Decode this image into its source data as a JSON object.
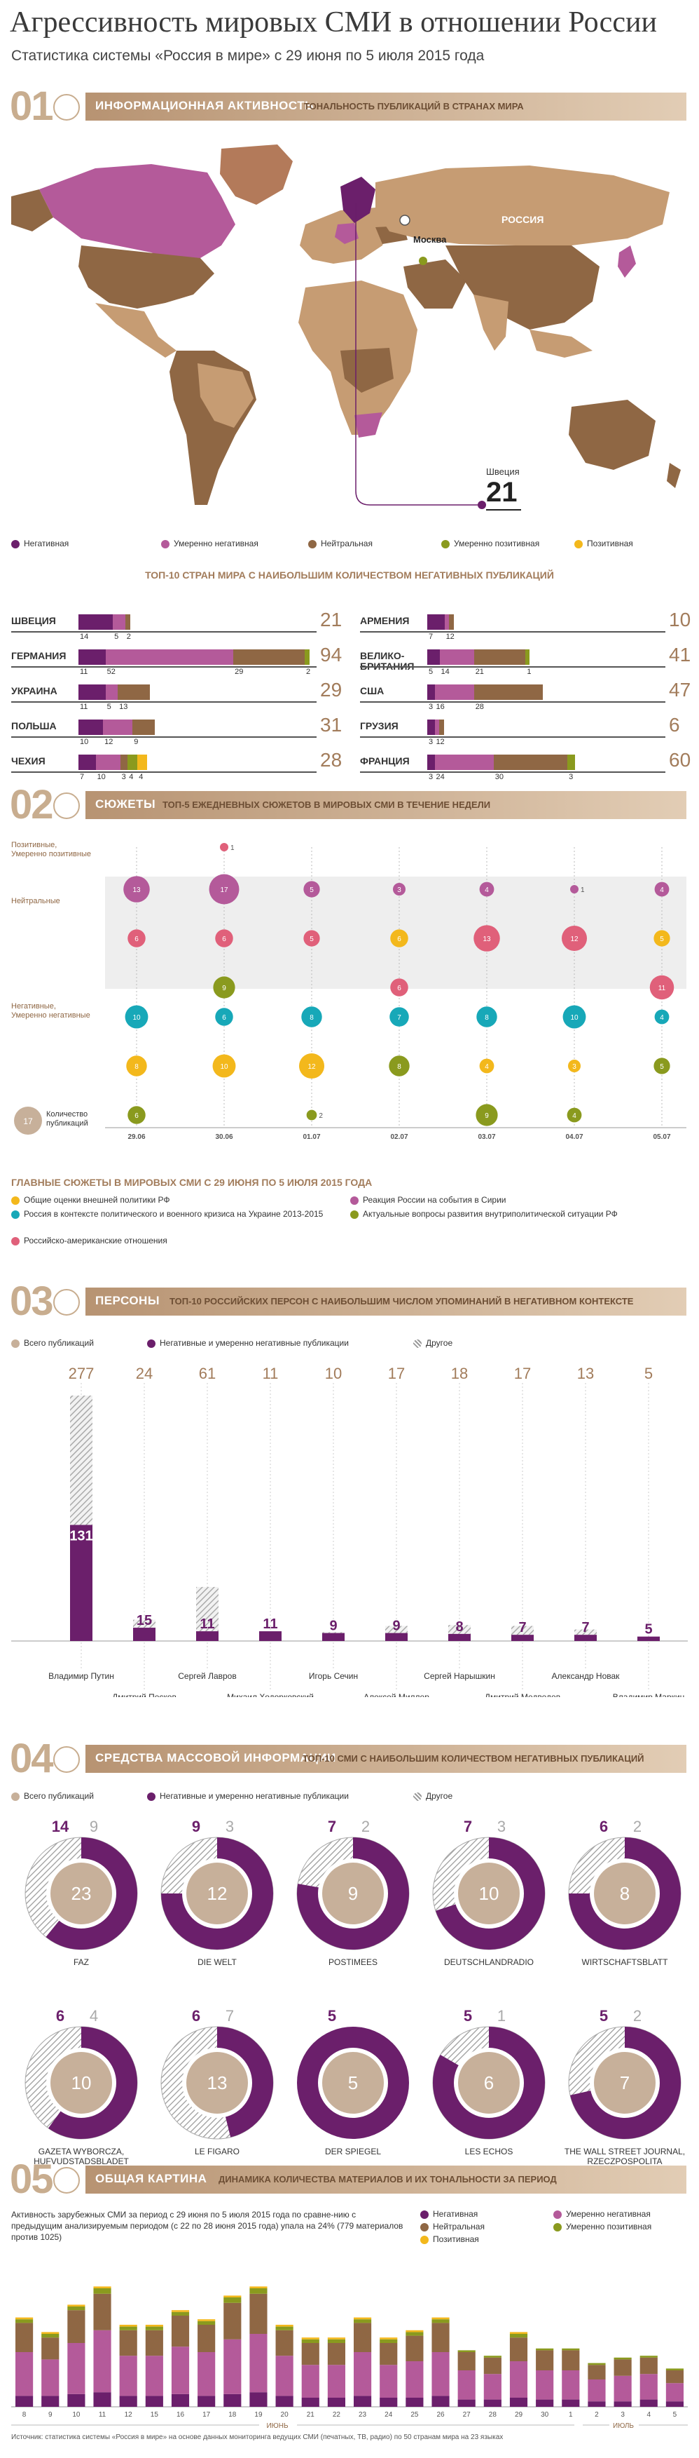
{
  "header": {
    "title": "Агрессивность мировых СМИ в отношении России",
    "subtitle": "Статистика системы «Россия в мире» с 29 июня по 5 июля 2015 года"
  },
  "colors": {
    "negative": "#6b1f6b",
    "moderate_negative": "#b45a9a",
    "neutral": "#8f6744",
    "moderate_positive": "#8a9a1e",
    "positive": "#f3b81c",
    "other": "#bdbdbd",
    "total": "#c7b09a"
  },
  "section1": {
    "number": "01",
    "label": "ИНФОРМАЦИОННАЯ АКТИВНОСТЬ",
    "sublabel": "ТОНАЛЬНОСТЬ ПУБЛИКАЦИЙ В СТРАНАХ МИРА",
    "map_labels": {
      "russia": "РОССИЯ",
      "moscow": "Москва",
      "callout_country": "Швеция",
      "callout_value": "21"
    },
    "legend": [
      "Негативная",
      "Умеренно негативная",
      "Нейтральная",
      "Умеренно позитивная",
      "Позитивная"
    ],
    "top10_title": "ТОП-10 СТРАН МИРА С НАИБОЛЬШИМ КОЛИЧЕСТВОМ НЕГАТИВНЫХ ПУБЛИКАЦИЙ"
  },
  "chart_data": [
    {
      "type": "bar",
      "title": "ТОП-10 СТРАН МИРА С НАИБОЛЬШИМ КОЛИЧЕСТВОМ НЕГАТИВНЫХ ПУБЛИКАЦИЙ",
      "series_names": [
        "Негативная",
        "Умеренно негативная",
        "Нейтральная",
        "Умеренно позитивная",
        "Позитивная"
      ],
      "countries": [
        {
          "name": "ШВЕЦИЯ",
          "total": 21,
          "values": [
            14,
            5,
            2,
            0,
            0
          ]
        },
        {
          "name": "ГЕРМАНИЯ",
          "total": 94,
          "values": [
            11,
            52,
            29,
            2,
            0
          ]
        },
        {
          "name": "УКРАИНА",
          "total": 29,
          "values": [
            11,
            5,
            13,
            0,
            0
          ]
        },
        {
          "name": "ПОЛЬША",
          "total": 31,
          "values": [
            10,
            12,
            9,
            0,
            0
          ]
        },
        {
          "name": "ЧЕХИЯ",
          "total": 28,
          "values": [
            7,
            10,
            3,
            4,
            4
          ]
        },
        {
          "name": "АРМЕНИЯ",
          "total": 10,
          "values": [
            7,
            1,
            2,
            0,
            0
          ]
        },
        {
          "name": "ВЕЛИКО-БРИТАНИЯ",
          "total": 41,
          "values": [
            5,
            14,
            21,
            1,
            0
          ]
        },
        {
          "name": "США",
          "total": 47,
          "values": [
            3,
            16,
            28,
            0,
            0
          ]
        },
        {
          "name": "ГРУЗИЯ",
          "total": 6,
          "values": [
            3,
            1,
            2,
            0,
            0
          ]
        },
        {
          "name": "ФРАНЦИЯ",
          "total": 60,
          "values": [
            3,
            24,
            30,
            3,
            0
          ]
        }
      ]
    },
    {
      "type": "scatter",
      "title": "ТОП-5 ЕЖЕДНЕВНЫХ СЮЖЕТОВ В МИРОВЫХ СМИ В ТЕЧЕНИЕ НЕДЕЛИ",
      "dates": [
        "29.06",
        "30.06",
        "01.07",
        "02.07",
        "03.07",
        "04.07",
        "05.07"
      ],
      "rows": [
        "Позитивные, Умеренно позитивные",
        "Нейтральные",
        "Негативные, Умеренно негативные"
      ],
      "topics": [
        "Общие оценки внешней политики РФ",
        "Россия в контексте политического и военного кризиса на Украине 2013-2015",
        "Российско-американские отношения",
        "Реакция России на события в Сирии",
        "Актуальные вопросы развития внутриполитической ситуации РФ"
      ],
      "points": [
        {
          "date": "29.06",
          "row": 1,
          "topic": 3,
          "value": 13
        },
        {
          "date": "29.06",
          "row": 1,
          "topic": 2,
          "value": 6
        },
        {
          "date": "29.06",
          "row": 2,
          "topic": 1,
          "value": 10
        },
        {
          "date": "29.06",
          "row": 2,
          "topic": 0,
          "value": 8
        },
        {
          "date": "29.06",
          "row": 2,
          "topic": 4,
          "value": 6
        },
        {
          "date": "30.06",
          "row": 0,
          "topic": 2,
          "value": 1
        },
        {
          "date": "30.06",
          "row": 1,
          "topic": 3,
          "value": 17
        },
        {
          "date": "30.06",
          "row": 1,
          "topic": 2,
          "value": 6
        },
        {
          "date": "30.06",
          "row": 1,
          "topic": 4,
          "value": 9
        },
        {
          "date": "30.06",
          "row": 2,
          "topic": 1,
          "value": 6
        },
        {
          "date": "30.06",
          "row": 2,
          "topic": 0,
          "value": 10
        },
        {
          "date": "01.07",
          "row": 1,
          "topic": 3,
          "value": 5
        },
        {
          "date": "01.07",
          "row": 1,
          "topic": 2,
          "value": 5
        },
        {
          "date": "01.07",
          "row": 2,
          "topic": 1,
          "value": 8
        },
        {
          "date": "01.07",
          "row": 2,
          "topic": 0,
          "value": 12
        },
        {
          "date": "01.07",
          "row": 2,
          "topic": 4,
          "value": 2
        },
        {
          "date": "02.07",
          "row": 1,
          "topic": 3,
          "value": 3
        },
        {
          "date": "02.07",
          "row": 1,
          "topic": 0,
          "value": 6
        },
        {
          "date": "02.07",
          "row": 1,
          "topic": 2,
          "value": 6
        },
        {
          "date": "02.07",
          "row": 2,
          "topic": 1,
          "value": 7
        },
        {
          "date": "02.07",
          "row": 2,
          "topic": 4,
          "value": 8
        },
        {
          "date": "03.07",
          "row": 1,
          "topic": 3,
          "value": 4
        },
        {
          "date": "03.07",
          "row": 1,
          "topic": 2,
          "value": 13
        },
        {
          "date": "03.07",
          "row": 2,
          "topic": 1,
          "value": 8
        },
        {
          "date": "03.07",
          "row": 2,
          "topic": 0,
          "value": 4
        },
        {
          "date": "03.07",
          "row": 2,
          "topic": 4,
          "value": 9
        },
        {
          "date": "04.07",
          "row": 1,
          "topic": 3,
          "value": 1
        },
        {
          "date": "04.07",
          "row": 1,
          "topic": 2,
          "value": 12
        },
        {
          "date": "04.07",
          "row": 2,
          "topic": 1,
          "value": 10
        },
        {
          "date": "04.07",
          "row": 2,
          "topic": 0,
          "value": 3
        },
        {
          "date": "04.07",
          "row": 2,
          "topic": 4,
          "value": 4
        },
        {
          "date": "05.07",
          "row": 1,
          "topic": 3,
          "value": 4
        },
        {
          "date": "05.07",
          "row": 1,
          "topic": 0,
          "value": 5
        },
        {
          "date": "05.07",
          "row": 1,
          "topic": 2,
          "value": 11
        },
        {
          "date": "05.07",
          "row": 2,
          "topic": 1,
          "value": 4
        },
        {
          "date": "05.07",
          "row": 2,
          "topic": 4,
          "value": 5
        }
      ]
    },
    {
      "type": "bar",
      "title": "ТОП-10 РОССИЙСКИХ ПЕРСОН С НАИБОЛЬШИМ ЧИСЛОМ УПОМИНАНИЙ В НЕГАТИВНОМ КОНТЕКСТЕ",
      "series_names": [
        "Всего публикаций",
        "Негативные и умеренно негативные публикации",
        "Другое"
      ],
      "persons": [
        {
          "name": "Владимир Путин",
          "total": 277,
          "negative": 131
        },
        {
          "name": "Дмитрий Песков",
          "total": 24,
          "negative": 15
        },
        {
          "name": "Сергей Лавров",
          "total": 61,
          "negative": 11
        },
        {
          "name": "Михаил Ходорковский",
          "total": 11,
          "negative": 11
        },
        {
          "name": "Игорь Сечин",
          "total": 10,
          "negative": 9
        },
        {
          "name": "Алексей Миллер",
          "total": 17,
          "negative": 9
        },
        {
          "name": "Сергей Нарышкин",
          "total": 18,
          "negative": 8
        },
        {
          "name": "Дмитрий Медведев",
          "total": 17,
          "negative": 7
        },
        {
          "name": "Александр Новак",
          "total": 13,
          "negative": 7
        },
        {
          "name": "Владимир Маркин",
          "total": 5,
          "negative": 5
        }
      ]
    },
    {
      "type": "pie",
      "title": "ТОП-10 СМИ С НАИБОЛЬШИМ КОЛИЧЕСТВОМ НЕГАТИВНЫХ ПУБЛИКАЦИЙ",
      "series_names": [
        "Всего публикаций",
        "Негативные и умеренно негативные публикации",
        "Другое"
      ],
      "media": [
        {
          "name": "FAZ",
          "total": 23,
          "negative": 14,
          "other": 9
        },
        {
          "name": "DIE WELT",
          "total": 12,
          "negative": 9,
          "other": 3
        },
        {
          "name": "POSTIMEES",
          "total": 9,
          "negative": 7,
          "other": 2
        },
        {
          "name": "DEUTSCHLANDRADIO",
          "total": 10,
          "negative": 7,
          "other": 3
        },
        {
          "name": "WIRTSCHAFTSBLATT",
          "total": 8,
          "negative": 6,
          "other": 2
        },
        {
          "name": "GAZETA WYBORCZA, HUFVUDSTADSBLADET",
          "total": 10,
          "negative": 6,
          "other": 4
        },
        {
          "name": "LE FIGARO",
          "total": 13,
          "negative": 6,
          "other": 7
        },
        {
          "name": "DER SPIEGEL",
          "total": 5,
          "negative": 5,
          "other": 0
        },
        {
          "name": "LES ECHOS",
          "total": 6,
          "negative": 5,
          "other": 1
        },
        {
          "name": "THE WALL STREET JOURNAL, RZECZPOSPOLITA",
          "total": 7,
          "negative": 5,
          "other": 2
        }
      ]
    },
    {
      "type": "bar",
      "title": "ДИНАМИКА КОЛИЧЕСТВА МАТЕРИАЛОВ И ИХ ТОНАЛЬНОСТИ ЗА ПЕРИОД",
      "categories": [
        "8",
        "9",
        "10",
        "11",
        "12",
        "15",
        "16",
        "17",
        "18",
        "19",
        "20",
        "21",
        "22",
        "23",
        "24",
        "25",
        "26",
        "27",
        "28",
        "29",
        "30",
        "1",
        "2",
        "3",
        "4",
        "5"
      ],
      "series": [
        {
          "name": "Негативная",
          "values": [
            6,
            6,
            7,
            8,
            6,
            6,
            7,
            6,
            7,
            8,
            6,
            5,
            5,
            6,
            5,
            5,
            6,
            4,
            4,
            5,
            4,
            4,
            3,
            3,
            4,
            3
          ]
        },
        {
          "name": "Умеренно негативная",
          "values": [
            24,
            20,
            28,
            34,
            22,
            22,
            26,
            24,
            30,
            32,
            22,
            18,
            18,
            24,
            18,
            20,
            24,
            16,
            14,
            20,
            16,
            16,
            12,
            14,
            14,
            10
          ]
        },
        {
          "name": "Нейтральная",
          "values": [
            16,
            12,
            18,
            20,
            14,
            14,
            17,
            15,
            20,
            22,
            14,
            12,
            12,
            16,
            12,
            14,
            16,
            10,
            9,
            13,
            11,
            11,
            8,
            9,
            9,
            7
          ]
        },
        {
          "name": "Умеренно позитивная",
          "values": [
            2,
            2,
            2,
            3,
            2,
            2,
            2,
            2,
            3,
            3,
            2,
            2,
            2,
            2,
            2,
            2,
            2,
            1,
            1,
            2,
            1,
            1,
            1,
            1,
            1,
            1
          ]
        },
        {
          "name": "Позитивная",
          "values": [
            1,
            1,
            1,
            1,
            1,
            1,
            1,
            1,
            1,
            1,
            1,
            1,
            1,
            1,
            1,
            1,
            1,
            0,
            0,
            1,
            0,
            0,
            0,
            0,
            0,
            0
          ]
        }
      ],
      "month_labels": [
        "ИЮНЬ",
        "ИЮЛЬ"
      ]
    }
  ],
  "section2": {
    "number": "02",
    "label": "СЮЖЕТЫ",
    "sublabel": "ТОП-5 ЕЖЕДНЕВНЫХ СЮЖЕТОВ В МИРОВЫХ СМИ В ТЕЧЕНИЕ НЕДЕЛИ",
    "legend_count": "Количество публикаций",
    "legend_count_value": "17",
    "topics_title": "ГЛАВНЫЕ СЮЖЕТЫ В МИРОВЫХ СМИ С 29 ИЮНЯ ПО 5 ИЮЛЯ 2015 ГОДА"
  },
  "section3": {
    "number": "03",
    "label": "ПЕРСОНЫ",
    "sublabel": "ТОП-10 РОССИЙСКИХ ПЕРСОН С НАИБОЛЬШИМ ЧИСЛОМ УПОМИНАНИЙ В НЕГАТИВНОМ КОНТЕКСТЕ",
    "legend": [
      "Всего публикаций",
      "Негативные и умеренно негативные публикации",
      "Другое"
    ]
  },
  "section4": {
    "number": "04",
    "label": "СРЕДСТВА МАССОВОЙ ИНФОРМАЦИИ",
    "sublabel": "ТОП-10 СМИ С НАИБОЛЬШИМ КОЛИЧЕСТВОМ НЕГАТИВНЫХ ПУБЛИКАЦИЙ",
    "legend": [
      "Всего публикаций",
      "Негативные и умеренно негативные публикации",
      "Другое"
    ]
  },
  "section5": {
    "number": "05",
    "label": "ОБЩАЯ КАРТИНА",
    "sublabel": "ДИНАМИКА КОЛИЧЕСТВА МАТЕРИАЛОВ И ИХ ТОНАЛЬНОСТИ ЗА ПЕРИОД",
    "text": "Активность зарубежных СМИ за период с 29 июня по 5 июля 2015 года по сравне-нию с предыдущим анализируемым периодом (с 22 по 28 июня 2015 года) упала на 24% (779 материалов против 1025)",
    "legend": [
      "Негативная",
      "Умеренно негативная",
      "Нейтральная",
      "Умеренно позитивная",
      "Позитивная"
    ]
  },
  "footer": "Источник: статистика системы «Россия в мире» на основе данных мониторинга ведущих СМИ (печатных, ТВ, радио) по 50 странам мира на 23 языках"
}
